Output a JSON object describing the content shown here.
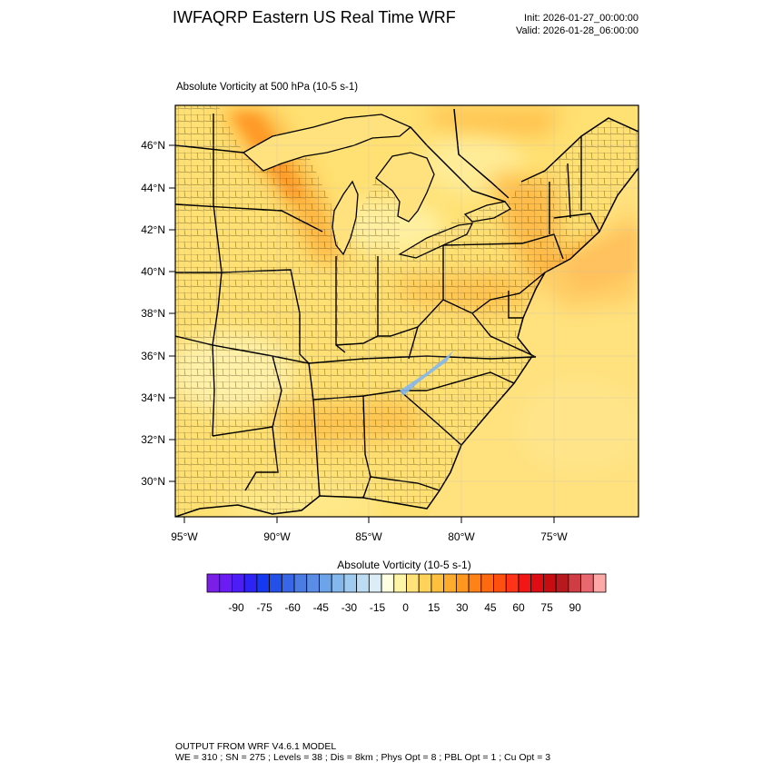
{
  "header": {
    "title": "IWFAQRP Eastern US Real Time WRF",
    "init": "Init: 2026-01-27_00:00:00",
    "valid": "Valid: 2026-01-28_06:00:00"
  },
  "map": {
    "subtitle": "Absolute Vorticity at 500 hPa   (10-5 s-1)",
    "lat_labels": [
      "46°N",
      "44°N",
      "42°N",
      "40°N",
      "38°N",
      "36°N",
      "34°N",
      "32°N",
      "30°N"
    ],
    "lon_labels": [
      "95°W",
      "90°W",
      "85°W",
      "80°W",
      "75°W"
    ]
  },
  "colorbar": {
    "title": "Absolute Vorticity  (10-5 s-1)",
    "labels": [
      "-90",
      "-75",
      "-60",
      "-45",
      "-30",
      "-15",
      "0",
      "15",
      "30",
      "45",
      "60",
      "75",
      "90"
    ],
    "colors": [
      "#7b1fe8",
      "#6a1cf2",
      "#4d1df7",
      "#2d23f5",
      "#1539f0",
      "#2450ea",
      "#3866e6",
      "#4a7ce4",
      "#5a8ee6",
      "#6ca3e9",
      "#84b8ed",
      "#9fcbf0",
      "#bcdcf4",
      "#dbeef8",
      "#fefee0",
      "#fff5a6",
      "#ffe27a",
      "#ffd259",
      "#ffc040",
      "#ffab2c",
      "#ff961e",
      "#ff8216",
      "#ff6a10",
      "#ff5010",
      "#ff3318",
      "#f21716",
      "#e00c14",
      "#c80d12",
      "#b8191e",
      "#cf3c44",
      "#e86870",
      "#ffa8a8"
    ]
  },
  "footer": {
    "line1": "OUTPUT FROM WRF V4.6.1 MODEL",
    "line2": "WE = 310 ; SN = 275 ; Levels = 38 ; Dis = 8km ; Phys Opt = 8 ; PBL Opt = 1 ; Cu Opt = 3"
  }
}
